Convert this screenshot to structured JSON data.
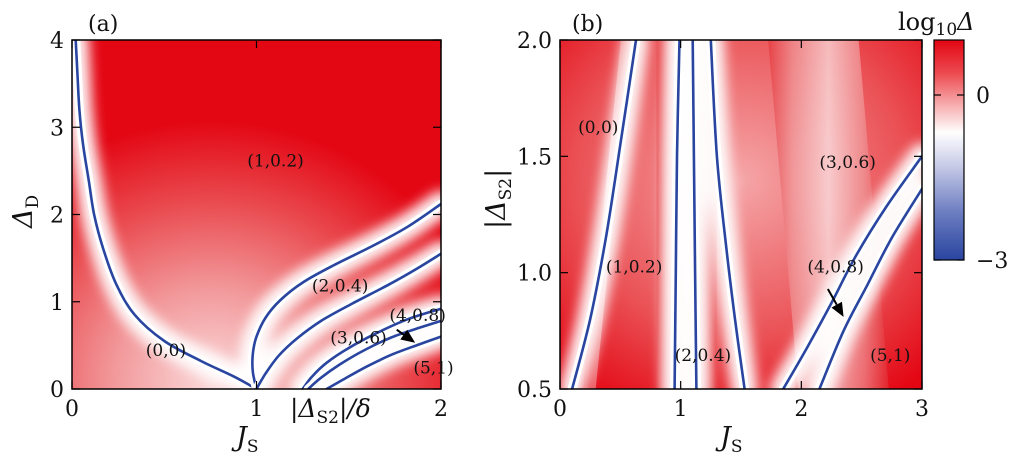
{
  "chart_data": [
    {
      "type": "heatmap",
      "panel": "(a)",
      "xlabel": "J",
      "xlabel_sub": "S",
      "ylabel": "Δ",
      "ylabel_sub": "D",
      "xlim": [
        0,
        2
      ],
      "ylim": [
        0,
        4
      ],
      "xticks": [
        "0",
        "1",
        "2"
      ],
      "yticks": [
        "0",
        "1",
        "2",
        "3",
        "4"
      ],
      "inset_label": "|Δ",
      "inset_label_sub": "S2",
      "inset_label_tail": "|/δ",
      "regions": [
        {
          "label": "(1,0.2)",
          "x": 0.95,
          "y": 2.55
        },
        {
          "label": "(2,0.4)",
          "x": 1.3,
          "y": 1.12
        },
        {
          "label": "(4,0.8)",
          "x": 1.72,
          "y": 0.78
        },
        {
          "label": "(3,0.6)",
          "x": 1.4,
          "y": 0.52
        },
        {
          "label": "(0,0)",
          "x": 0.4,
          "y": 0.38
        },
        {
          "label": "(5,1)",
          "x": 1.85,
          "y": 0.18
        }
      ],
      "arrow": {
        "from": [
          1.76,
          0.68
        ],
        "to": [
          1.86,
          0.53
        ]
      },
      "contours": [
        {
          "name": "n0",
          "points": [
            [
              0.02,
              4.0
            ],
            [
              0.03,
              3.6
            ],
            [
              0.04,
              3.2
            ],
            [
              0.06,
              2.8
            ],
            [
              0.09,
              2.4
            ],
            [
              0.12,
              2.0
            ],
            [
              0.17,
              1.6
            ],
            [
              0.24,
              1.2
            ],
            [
              0.34,
              0.85
            ],
            [
              0.5,
              0.55
            ],
            [
              0.7,
              0.32
            ],
            [
              0.88,
              0.14
            ],
            [
              1.0,
              0.0
            ]
          ]
        },
        {
          "name": "n1",
          "points": [
            [
              1.0,
              0.0
            ],
            [
              0.98,
              0.2
            ],
            [
              0.98,
              0.4
            ],
            [
              1.0,
              0.6
            ],
            [
              1.05,
              0.82
            ],
            [
              1.13,
              1.02
            ],
            [
              1.25,
              1.22
            ],
            [
              1.42,
              1.42
            ],
            [
              1.63,
              1.64
            ],
            [
              1.82,
              1.86
            ],
            [
              2.0,
              2.12
            ]
          ]
        },
        {
          "name": "n2",
          "points": [
            [
              1.0,
              0.0
            ],
            [
              1.05,
              0.18
            ],
            [
              1.12,
              0.38
            ],
            [
              1.22,
              0.58
            ],
            [
              1.35,
              0.78
            ],
            [
              1.52,
              0.98
            ],
            [
              1.72,
              1.2
            ],
            [
              1.87,
              1.38
            ],
            [
              2.0,
              1.55
            ]
          ]
        },
        {
          "name": "n3",
          "points": [
            [
              1.25,
              0.0
            ],
            [
              1.3,
              0.14
            ],
            [
              1.38,
              0.3
            ],
            [
              1.5,
              0.47
            ],
            [
              1.65,
              0.64
            ],
            [
              1.82,
              0.8
            ],
            [
              2.0,
              0.92
            ]
          ]
        },
        {
          "name": "n4",
          "points": [
            [
              1.28,
              0.0
            ],
            [
              1.35,
              0.13
            ],
            [
              1.45,
              0.28
            ],
            [
              1.58,
              0.44
            ],
            [
              1.73,
              0.59
            ],
            [
              1.88,
              0.7
            ],
            [
              2.0,
              0.78
            ]
          ]
        },
        {
          "name": "n5",
          "points": [
            [
              1.38,
              0.0
            ],
            [
              1.48,
              0.12
            ],
            [
              1.6,
              0.26
            ],
            [
              1.74,
              0.4
            ],
            [
              1.88,
              0.51
            ],
            [
              2.0,
              0.6
            ]
          ]
        }
      ]
    },
    {
      "type": "heatmap",
      "panel": "(b)",
      "xlabel": "J",
      "xlabel_sub": "S",
      "ylabel": "|Δ",
      "ylabel_sub": "S2",
      "ylabel_tail": "|",
      "xlim": [
        0,
        3
      ],
      "ylim": [
        0.5,
        2.0
      ],
      "xticks": [
        "0",
        "1",
        "2",
        "3"
      ],
      "yticks": [
        "0.5",
        "1.0",
        "1.5",
        "2.0"
      ],
      "regions": [
        {
          "label": "(0,0)",
          "x": 0.15,
          "y": 1.6
        },
        {
          "label": "(3,0.6)",
          "x": 2.15,
          "y": 1.45
        },
        {
          "label": "(1,0.2)",
          "x": 0.38,
          "y": 1.0
        },
        {
          "label": "(4,0.8)",
          "x": 2.05,
          "y": 1.0
        },
        {
          "label": "(2,0.4)",
          "x": 0.95,
          "y": 0.62
        },
        {
          "label": "(5,1)",
          "x": 2.57,
          "y": 0.62
        }
      ],
      "arrow": {
        "from": [
          2.22,
          0.93
        ],
        "to": [
          2.35,
          0.81
        ]
      },
      "contours": [
        {
          "name": "m1",
          "points": [
            [
              0.63,
              2.0
            ],
            [
              0.5,
              1.55
            ],
            [
              0.38,
              1.15
            ],
            [
              0.25,
              0.8
            ],
            [
              0.1,
              0.5
            ]
          ]
        },
        {
          "name": "m2",
          "points": [
            [
              0.99,
              2.0
            ],
            [
              0.97,
              1.5
            ],
            [
              0.96,
              1.0
            ],
            [
              0.95,
              0.5
            ]
          ]
        },
        {
          "name": "m3",
          "points": [
            [
              1.1,
              2.0
            ],
            [
              1.11,
              1.5
            ],
            [
              1.12,
              1.0
            ],
            [
              1.13,
              0.5
            ]
          ]
        },
        {
          "name": "m4",
          "points": [
            [
              1.25,
              2.0
            ],
            [
              1.3,
              1.5
            ],
            [
              1.38,
              1.1
            ],
            [
              1.45,
              0.8
            ],
            [
              1.53,
              0.5
            ]
          ]
        },
        {
          "name": "m5",
          "points": [
            [
              3.0,
              1.5
            ],
            [
              2.7,
              1.28
            ],
            [
              2.45,
              1.07
            ],
            [
              2.25,
              0.87
            ],
            [
              2.05,
              0.68
            ],
            [
              1.85,
              0.5
            ]
          ]
        },
        {
          "name": "m6",
          "points": [
            [
              3.0,
              1.36
            ],
            [
              2.75,
              1.15
            ],
            [
              2.55,
              0.95
            ],
            [
              2.35,
              0.75
            ],
            [
              2.15,
              0.5
            ]
          ]
        }
      ]
    },
    {
      "type": "colorbar",
      "title": "log",
      "title_sub": "10",
      "title_tail": "Δ",
      "range": [
        -3,
        1
      ],
      "ticks": [
        {
          "value": 0,
          "label": "0"
        },
        {
          "value": -3,
          "label": "−3"
        }
      ],
      "colors": {
        "high": "#e30613",
        "mid": "#ffffff",
        "low": "#2a45a0"
      }
    }
  ]
}
